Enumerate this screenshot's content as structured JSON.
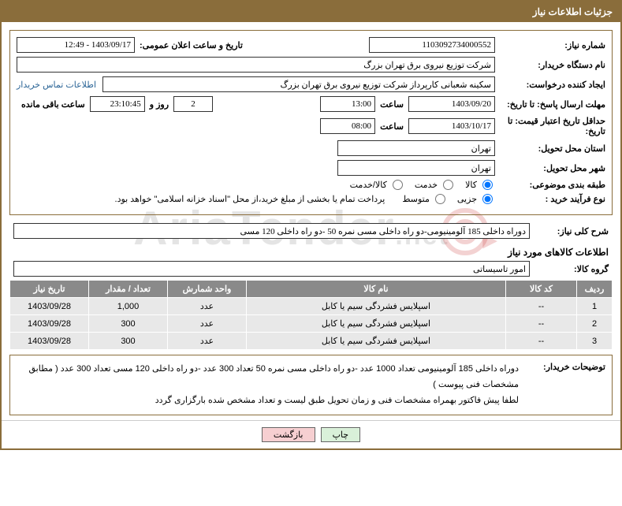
{
  "header": {
    "title": "جزئیات اطلاعات نیاز"
  },
  "fields": {
    "need_number_label": "شماره نیاز:",
    "need_number": "1103092734000552",
    "announce_label": "تاریخ و ساعت اعلان عمومی:",
    "announce_value": "1403/09/17 - 12:49",
    "buyer_org_label": "نام دستگاه خریدار:",
    "buyer_org": "شرکت توزیع نیروی برق تهران بزرگ",
    "requester_label": "ایجاد کننده درخواست:",
    "requester": "سکینه شعبانی کارپرداز شرکت توزیع نیروی برق تهران بزرگ",
    "contact_link": "اطلاعات تماس خریدار",
    "deadline_label": "مهلت ارسال پاسخ:",
    "until_label": "تا تاریخ:",
    "deadline_date": "1403/09/20",
    "time_label": "ساعت",
    "deadline_time": "13:00",
    "days": "2",
    "day_and": "روز و",
    "countdown": "23:10:45",
    "remaining": "ساعت باقی مانده",
    "validity_label": "حداقل تاریخ اعتبار قیمت:",
    "validity_date": "1403/10/17",
    "validity_time": "08:00",
    "province_label": "استان محل تحویل:",
    "province": "تهران",
    "city_label": "شهر محل تحویل:",
    "city": "تهران",
    "category_label": "طبقه بندی موضوعی:",
    "cat_goods": "کالا",
    "cat_service": "خدمت",
    "cat_both": "کالا/خدمت",
    "process_label": "نوع فرآیند خرید :",
    "proc_minor": "جزیی",
    "proc_medium": "متوسط",
    "process_note": "پرداخت تمام یا بخشی از مبلغ خرید،از محل \"اسناد خزانه اسلامی\" خواهد بود."
  },
  "need_summary": {
    "label": "شرح کلی نیاز:",
    "text": "دوراه داخلی 185 آلومینیومی-دو راه داخلی مسی نمره 50 -دو راه داخلی 120 مسی"
  },
  "goods_section_title": "اطلاعات کالاهای مورد نیاز",
  "goods_group": {
    "label": "گروه کالا:",
    "value": "امور تاسیساتی"
  },
  "table": {
    "headers": {
      "row": "ردیف",
      "code": "کد کالا",
      "name": "نام کالا",
      "unit": "واحد شمارش",
      "qty": "تعداد / مقدار",
      "date": "تاریخ نیاز"
    },
    "rows": [
      {
        "row": "1",
        "code": "--",
        "name": "اسپلایس فشردگی سیم یا کابل",
        "unit": "عدد",
        "qty": "1,000",
        "date": "1403/09/28"
      },
      {
        "row": "2",
        "code": "--",
        "name": "اسپلایس فشردگی سیم یا کابل",
        "unit": "عدد",
        "qty": "300",
        "date": "1403/09/28"
      },
      {
        "row": "3",
        "code": "--",
        "name": "اسپلایس فشردگی سیم یا کابل",
        "unit": "عدد",
        "qty": "300",
        "date": "1403/09/28"
      }
    ]
  },
  "buyer_notes": {
    "label": "توضیحات خریدار:",
    "line1": "دوراه داخلی 185 آلومینیومی تعداد 1000 عدد -دو راه داخلی مسی نمره 50 تعداد 300 عدد -دو راه داخلی 120 مسی تعداد 300 عدد ( مطابق مشخصات فنی پیوست )",
    "line2": "لطفا پیش فاکتور بهمراه مشخصات فنی و زمان تحویل طبق لیست و تعداد مشخص شده بارگزاری گردد"
  },
  "buttons": {
    "print": "چاپ",
    "back": "بازگشت"
  },
  "watermark": {
    "text": "AriaTender",
    "suffix": ".net"
  }
}
